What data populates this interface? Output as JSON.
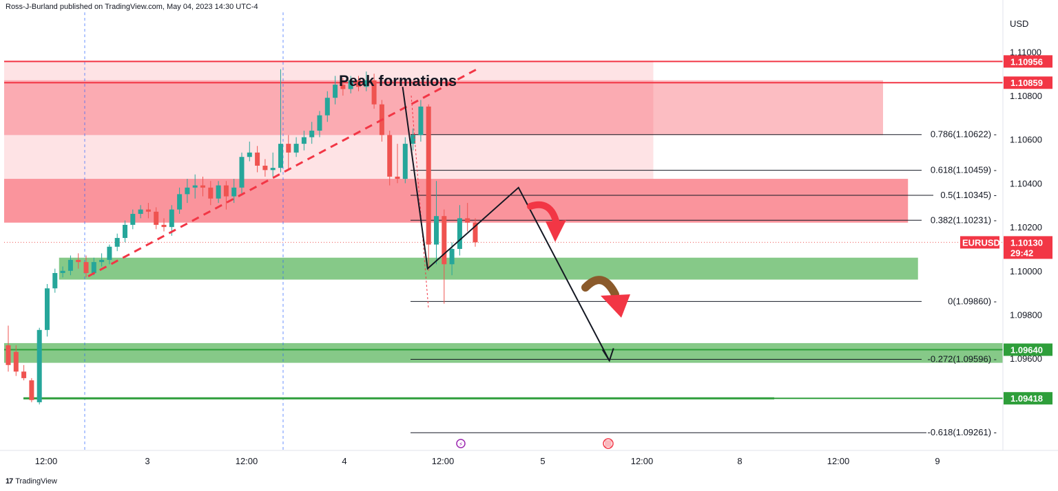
{
  "header": {
    "text": "Ross-J-Burland published on TradingView.com, May 04, 2023 14:30 UTC-4"
  },
  "footer": {
    "logo_text": "TradingView",
    "logo_mark": "17"
  },
  "colors": {
    "bull": "#26a69a",
    "bear": "#ef5350",
    "supply_zone": "#f7525f",
    "demand_zone": "#4caf50",
    "resistance_line": "#f23645",
    "support_line": "#089981",
    "support_line_alt": "#2e9e3a",
    "arrow_brown": "#8b5a2b",
    "price_tag": "#f23645"
  },
  "chart_data": {
    "type": "candlestick",
    "title": "",
    "symbol": "EURUSD",
    "currency": "USD",
    "ylim": [
      1.0918,
      1.1118
    ],
    "y_ticks": [
      "1.11000",
      "1.10800",
      "1.10600",
      "1.10400",
      "1.10200",
      "1.10000",
      "1.09800",
      "1.09600"
    ],
    "x_ticks": [
      "12:00",
      "3",
      "12:00",
      "4",
      "12:00",
      "5",
      "12:00",
      "8",
      "12:00",
      "9"
    ],
    "last_price": "1.10130",
    "countdown": "29:42",
    "annotation": "Peak formations",
    "levels": [
      {
        "label": "1.10956",
        "value": 1.10956,
        "type": "resistance"
      },
      {
        "label": "1.10859",
        "value": 1.10859,
        "type": "resistance"
      },
      {
        "label": "1.09640",
        "value": 1.0964,
        "type": "support"
      },
      {
        "label": "1.09418",
        "value": 1.09418,
        "type": "support"
      }
    ],
    "fibonacci": [
      {
        "label": "0.786(1.10622)",
        "value": 1.10622
      },
      {
        "label": "0.618(1.10459)",
        "value": 1.10459
      },
      {
        "label": "0.5(1.10345)",
        "value": 1.10345
      },
      {
        "label": "0.382(1.10231)",
        "value": 1.10231
      },
      {
        "label": "0(1.09860)",
        "value": 1.0986
      },
      {
        "label": "-0.272(1.09596)",
        "value": 1.09596
      },
      {
        "label": "-0.618(1.09261)",
        "value": 1.09261
      }
    ],
    "zones": [
      {
        "type": "supply",
        "top": 1.1096,
        "bottom": 1.1042,
        "x_start": 0,
        "x_end": 0.65
      },
      {
        "type": "supply",
        "top": 1.1087,
        "bottom": 1.1062,
        "x_start": 0,
        "x_end": 0.88
      },
      {
        "type": "supply",
        "top": 1.1042,
        "bottom": 1.1022,
        "x_start": 0,
        "x_end": 0.905
      },
      {
        "type": "demand",
        "top": 1.1006,
        "bottom": 1.0996,
        "x_start": 0.055,
        "x_end": 0.915
      },
      {
        "type": "demand",
        "top": 1.0967,
        "bottom": 1.0958,
        "x_start": 0,
        "x_end": 1.0
      }
    ],
    "projection": [
      {
        "x": 0.399,
        "y": 1.1084
      },
      {
        "x": 0.424,
        "y": 1.1001
      },
      {
        "x": 0.515,
        "y": 1.1038
      },
      {
        "x": 0.606,
        "y": 1.0959
      }
    ],
    "candles": [
      [
        1.0966,
        1.0957,
        1.0975,
        1.0954
      ],
      [
        1.0963,
        1.0954,
        1.0966,
        1.0952
      ],
      [
        1.0954,
        1.0951,
        1.0957,
        1.095
      ],
      [
        1.095,
        1.0941,
        1.0951,
        1.094
      ],
      [
        1.094,
        1.0973,
        1.0974,
        1.0939
      ],
      [
        1.0973,
        1.0992,
        1.0994,
        1.097
      ],
      [
        1.0992,
        1.0999,
        1.1001,
        1.099
      ],
      [
        1.0999,
        1.1,
        1.1002,
        1.0997
      ],
      [
        1.1,
        1.1005,
        1.1007,
        1.0998
      ],
      [
        1.1005,
        1.1004,
        1.1008,
        1.1001
      ],
      [
        1.1004,
        1.0999,
        1.1007,
        1.0997
      ],
      [
        1.0999,
        1.1004,
        1.1006,
        1.0998
      ],
      [
        1.1004,
        1.1005,
        1.1008,
        1.1002
      ],
      [
        1.1005,
        1.1011,
        1.1012,
        1.1003
      ],
      [
        1.1011,
        1.1015,
        1.1017,
        1.1009
      ],
      [
        1.1015,
        1.1021,
        1.1023,
        1.1013
      ],
      [
        1.1021,
        1.1026,
        1.1028,
        1.1019
      ],
      [
        1.1026,
        1.1028,
        1.103,
        1.1024
      ],
      [
        1.1028,
        1.1027,
        1.1031,
        1.1024
      ],
      [
        1.1027,
        1.1021,
        1.1029,
        1.1019
      ],
      [
        1.1021,
        1.102,
        1.1024,
        1.1018
      ],
      [
        1.102,
        1.1028,
        1.103,
        1.1016
      ],
      [
        1.1028,
        1.1035,
        1.1038,
        1.1026
      ],
      [
        1.1035,
        1.1038,
        1.1042,
        1.1031
      ],
      [
        1.1038,
        1.1039,
        1.1044,
        1.1033
      ],
      [
        1.1039,
        1.1038,
        1.1043,
        1.1034
      ],
      [
        1.1038,
        1.1033,
        1.1041,
        1.103
      ],
      [
        1.1033,
        1.1039,
        1.1041,
        1.1031
      ],
      [
        1.1039,
        1.1034,
        1.1041,
        1.1028
      ],
      [
        1.1034,
        1.1038,
        1.1042,
        1.1031
      ],
      [
        1.1038,
        1.1052,
        1.1054,
        1.1035
      ],
      [
        1.1052,
        1.1054,
        1.1059,
        1.105
      ],
      [
        1.1054,
        1.1048,
        1.1057,
        1.1045
      ],
      [
        1.1048,
        1.1046,
        1.1051,
        1.1043
      ],
      [
        1.1046,
        1.1047,
        1.1054,
        1.1043
      ],
      [
        1.1047,
        1.1058,
        1.1092,
        1.1045
      ],
      [
        1.1058,
        1.1054,
        1.1062,
        1.1046
      ],
      [
        1.1054,
        1.1058,
        1.1061,
        1.1052
      ],
      [
        1.1058,
        1.1061,
        1.1064,
        1.1055
      ],
      [
        1.1061,
        1.1064,
        1.1068,
        1.1058
      ],
      [
        1.1064,
        1.1071,
        1.1073,
        1.1061
      ],
      [
        1.1071,
        1.1079,
        1.1082,
        1.1068
      ],
      [
        1.1079,
        1.1085,
        1.1089,
        1.1076
      ],
      [
        1.1085,
        1.1083,
        1.1088,
        1.108
      ],
      [
        1.1083,
        1.1087,
        1.1089,
        1.1081
      ],
      [
        1.1087,
        1.1084,
        1.1089,
        1.1082
      ],
      [
        1.1084,
        1.1087,
        1.1091,
        1.1082
      ],
      [
        1.1087,
        1.1076,
        1.109,
        1.1074
      ],
      [
        1.1076,
        1.1062,
        1.1078,
        1.1059
      ],
      [
        1.1062,
        1.1043,
        1.1064,
        1.1039
      ],
      [
        1.1043,
        1.1042,
        1.1058,
        1.104
      ],
      [
        1.1042,
        1.1058,
        1.1061,
        1.104
      ],
      [
        1.1058,
        1.1062,
        1.1065,
        1.1055
      ],
      [
        1.1062,
        1.1075,
        1.1078,
        1.1059
      ],
      [
        1.1075,
        1.1012,
        1.1076,
        1.1
      ],
      [
        1.1012,
        1.1025,
        1.1041,
        1.1003
      ],
      [
        1.1025,
        1.1003,
        1.1028,
        1.0985
      ],
      [
        1.1003,
        1.101,
        1.1013,
        1.0998
      ],
      [
        1.101,
        1.1024,
        1.103,
        1.1007
      ],
      [
        1.1024,
        1.1022,
        1.1031,
        1.1018
      ],
      [
        1.1022,
        1.1013,
        1.1024,
        1.1011
      ]
    ],
    "grid": false,
    "legend": "none"
  }
}
